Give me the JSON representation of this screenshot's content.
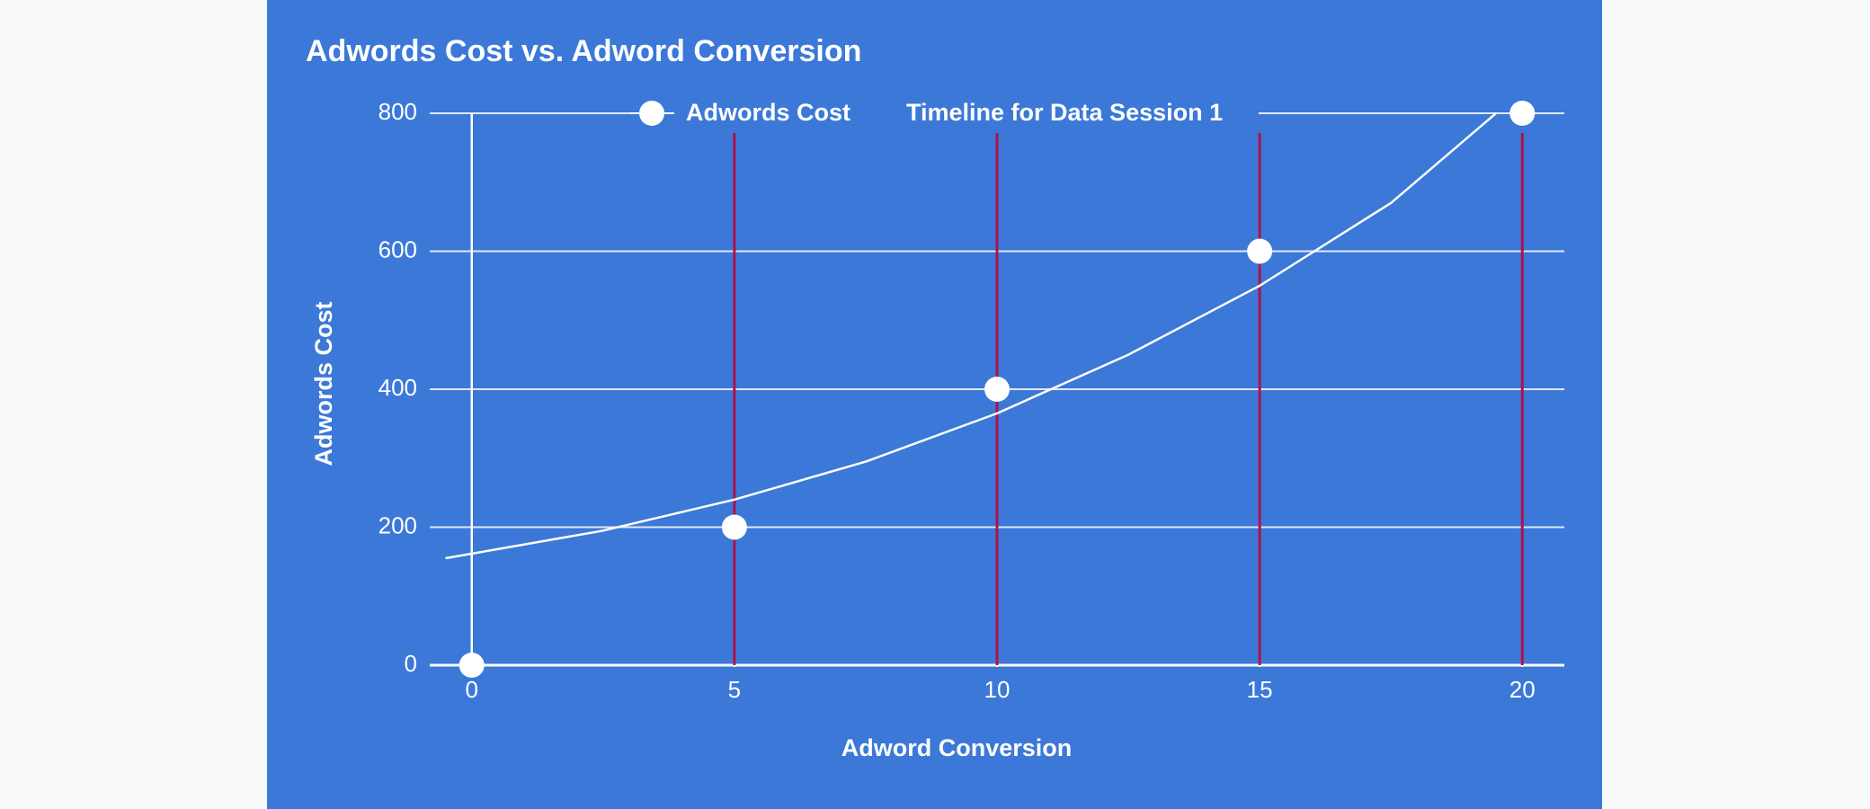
{
  "chart_data": {
    "type": "scatter",
    "title": "Adwords Cost vs. Adword Conversion",
    "x_label": "Adword Conversion",
    "y_label": "Adwords Cost",
    "xlim": [
      -0.8,
      20.8
    ],
    "ylim": [
      0,
      800
    ],
    "xticks": [
      0,
      5,
      10,
      15,
      20
    ],
    "yticks": [
      0,
      200,
      400,
      600,
      800
    ],
    "grid": true,
    "series": [
      {
        "name": "Adwords Cost",
        "color": "#ffffff",
        "x": [
          0,
          5,
          10,
          15,
          20
        ],
        "values": [
          0,
          200,
          400,
          600,
          800
        ]
      },
      {
        "name": "Timeline for Data Session 1",
        "color": "#b0124a",
        "style": "vline",
        "x": [
          5,
          10,
          15,
          20
        ]
      }
    ],
    "trendline": {
      "color": "#ffffff",
      "x": [
        -0.5,
        2.5,
        5,
        7.5,
        10,
        12.5,
        15,
        17.5,
        19.5
      ],
      "values": [
        155,
        195,
        240,
        295,
        365,
        450,
        550,
        670,
        800
      ]
    }
  }
}
